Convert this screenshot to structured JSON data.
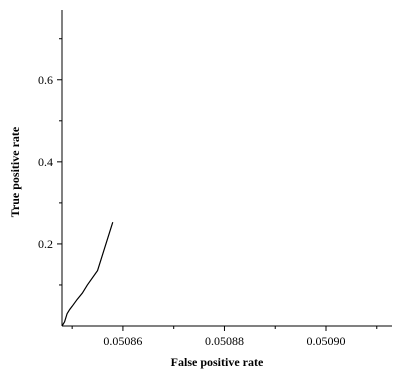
{
  "chart_data": {
    "type": "line",
    "title": "",
    "xlabel": "False positive rate",
    "ylabel": "True positive rate",
    "xlim": [
      0.050848,
      0.050913
    ],
    "ylim": [
      0.0,
      0.77
    ],
    "grid": false,
    "x_ticks": [
      0.05086,
      0.05088,
      0.0509
    ],
    "x_tick_labels": [
      "0.05086",
      "0.05088",
      "0.05090"
    ],
    "y_ticks": [
      0.2,
      0.4,
      0.6
    ],
    "y_tick_labels": [
      "0.2",
      "0.4",
      "0.6"
    ],
    "series": [
      {
        "color": "#000000",
        "x": [
          0.050848,
          0.0508485,
          0.050849,
          0.0508495,
          0.05085,
          0.050851,
          0.050852,
          0.050853,
          0.050855,
          0.050858
        ],
        "y": [
          0.0,
          0.01,
          0.03,
          0.04,
          0.048,
          0.065,
          0.08,
          0.1,
          0.135,
          0.253
        ]
      }
    ]
  }
}
